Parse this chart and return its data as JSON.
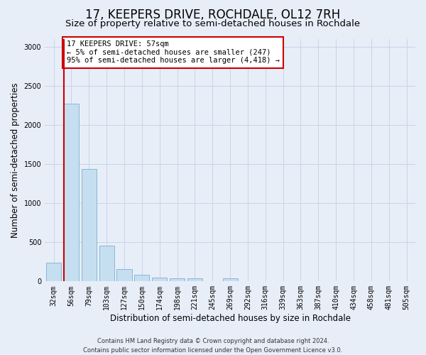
{
  "title": "17, KEEPERS DRIVE, ROCHDALE, OL12 7RH",
  "subtitle": "Size of property relative to semi-detached houses in Rochdale",
  "xlabel": "Distribution of semi-detached houses by size in Rochdale",
  "ylabel": "Number of semi-detached properties",
  "footer": "Contains HM Land Registry data © Crown copyright and database right 2024.\nContains public sector information licensed under the Open Government Licence v3.0.",
  "categories": [
    "32sqm",
    "56sqm",
    "79sqm",
    "103sqm",
    "127sqm",
    "150sqm",
    "174sqm",
    "198sqm",
    "221sqm",
    "245sqm",
    "269sqm",
    "292sqm",
    "316sqm",
    "339sqm",
    "363sqm",
    "387sqm",
    "410sqm",
    "434sqm",
    "458sqm",
    "481sqm",
    "505sqm"
  ],
  "values": [
    240,
    2270,
    1440,
    460,
    155,
    85,
    45,
    40,
    35,
    0,
    40,
    0,
    0,
    0,
    0,
    0,
    0,
    0,
    0,
    0,
    0
  ],
  "bar_color": "#c5dff0",
  "bar_edge_color": "#7aafd4",
  "property_line_color": "#cc0000",
  "annotation_text": "17 KEEPERS DRIVE: 57sqm\n← 5% of semi-detached houses are smaller (247)\n95% of semi-detached houses are larger (4,418) →",
  "annotation_box_color": "#ffffff",
  "annotation_box_edge": "#cc0000",
  "ylim": [
    0,
    3100
  ],
  "yticks": [
    0,
    500,
    1000,
    1500,
    2000,
    2500,
    3000
  ],
  "grid_color": "#c8d4e8",
  "bg_color": "#e8eef8",
  "title_fontsize": 12,
  "subtitle_fontsize": 9.5,
  "axis_label_fontsize": 8.5,
  "tick_fontsize": 7,
  "footer_fontsize": 6,
  "annotation_fontsize": 7.5
}
